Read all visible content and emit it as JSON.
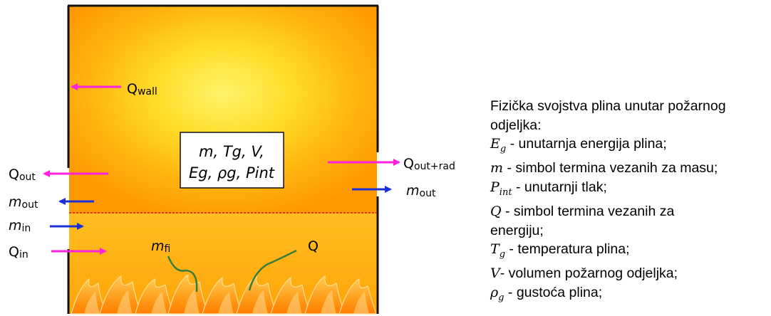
{
  "compartment": {
    "state_box": {
      "line1": "m, Tg, V,",
      "line2": "Eg, ρg, Pint"
    },
    "labels": {
      "q_wall": "Qwall",
      "q_out": "Qout",
      "m_out_left": "mout",
      "m_in": "min",
      "q_in": "Qin",
      "m_fi": "mfi",
      "q": "Q",
      "q_out_rad": "Qout+rad",
      "m_out_right": "mout"
    },
    "colors": {
      "heat_arrow": "#ff22dd",
      "mass_arrow": "#1a2fd6",
      "plume_line": "#3a7d3a",
      "interface_line": "#d63a1a",
      "hot_center": "#ffee44",
      "wall_fill": "#ff9a00",
      "flame": "#ff8800"
    }
  },
  "legend": {
    "intro_line1": "Fizička svojstva plina unutar požarnog",
    "intro_line2": "odjeljka:",
    "items": [
      {
        "sym": "E",
        "sub": "g",
        "text": " - unutarnja energija plina;"
      },
      {
        "sym": "m",
        "sub": "",
        "text": " - simbol termina vezanih za masu;"
      },
      {
        "sym": "P",
        "sub": "int",
        "text": " - unutarnji tlak;"
      },
      {
        "sym": "Q",
        "sub": "",
        "text": " - simbol termina vezanih za"
      },
      {
        "sym": "",
        "sub": "",
        "text": "energiju;"
      },
      {
        "sym": "T",
        "sub": "g",
        "text": " - temperatura plina;"
      },
      {
        "sym": "V",
        "sub": "",
        "text": "- volumen požarnog odjeljka;"
      },
      {
        "sym": "ρ",
        "sub": "g",
        "text": " - gustoća plina;"
      }
    ]
  }
}
